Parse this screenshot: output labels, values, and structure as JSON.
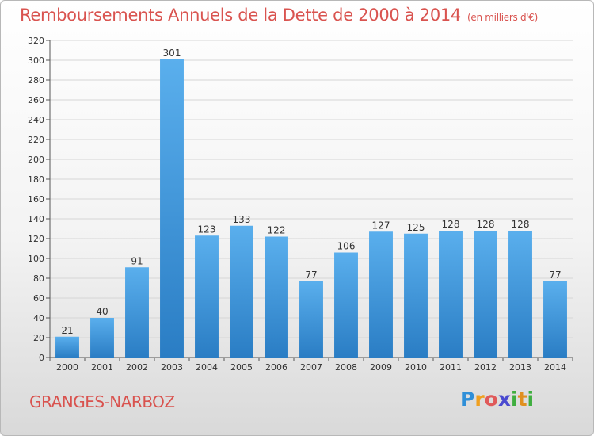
{
  "header": {
    "title": "Remboursements Annuels de la Dette de 2000 à 2014",
    "unit": "(en milliers d'€)"
  },
  "footer": {
    "city": "GRANGES-NARBOZ",
    "logo_letters": [
      "P",
      "r",
      "o",
      "x",
      "i",
      "t",
      "i"
    ]
  },
  "colors": {
    "title": "#d9534f",
    "bar_top": "#5aafed",
    "bar_bottom": "#2a7dc4",
    "grid": "#d6d6d6"
  },
  "chart_data": {
    "type": "bar",
    "title": "Remboursements Annuels de la Dette de 2000 à 2014",
    "subtitle": "(en milliers d'€)",
    "xlabel": "",
    "ylabel": "",
    "categories": [
      "2000",
      "2001",
      "2002",
      "2003",
      "2004",
      "2005",
      "2006",
      "2007",
      "2008",
      "2009",
      "2010",
      "2011",
      "2012",
      "2013",
      "2014"
    ],
    "values": [
      21,
      40,
      91,
      301,
      123,
      133,
      122,
      77,
      106,
      127,
      125,
      128,
      128,
      128,
      77
    ],
    "ylim": [
      0,
      320
    ],
    "yticks": [
      0,
      20,
      40,
      60,
      80,
      100,
      120,
      140,
      160,
      180,
      200,
      220,
      240,
      260,
      280,
      300,
      320
    ],
    "grid": true,
    "legend": "none"
  }
}
